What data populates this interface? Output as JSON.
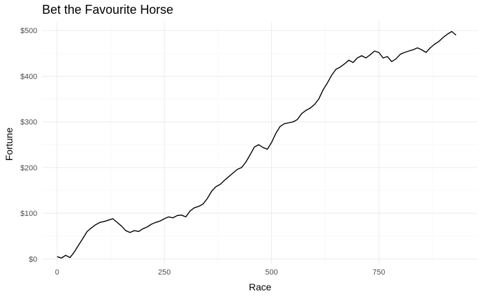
{
  "chart_data": {
    "type": "line",
    "title": "Bet the Favourite Horse",
    "xlabel": "Race",
    "ylabel": "Fortune",
    "xlim": [
      -35,
      980
    ],
    "ylim": [
      -10,
      520
    ],
    "x_ticks": [
      0,
      250,
      500,
      750
    ],
    "x_tick_labels": [
      "0",
      "250",
      "500",
      "750"
    ],
    "y_ticks": [
      0,
      100,
      200,
      300,
      400,
      500
    ],
    "y_tick_labels": [
      "$0",
      "$100",
      "$200",
      "$300",
      "$400",
      "$500"
    ],
    "grid": true,
    "legend": "none",
    "line_color": "#000000",
    "series": [
      {
        "x": [
          0,
          10,
          20,
          30,
          40,
          50,
          60,
          70,
          80,
          90,
          100,
          110,
          120,
          130,
          140,
          150,
          160,
          170,
          180,
          190,
          200,
          210,
          220,
          230,
          240,
          250,
          260,
          270,
          280,
          290,
          300,
          310,
          320,
          330,
          340,
          350,
          360,
          370,
          380,
          390,
          400,
          410,
          420,
          430,
          440,
          450,
          460,
          470,
          480,
          490,
          500,
          510,
          520,
          530,
          540,
          550,
          560,
          570,
          580,
          590,
          600,
          610,
          620,
          630,
          640,
          650,
          660,
          670,
          680,
          690,
          700,
          710,
          720,
          730,
          740,
          750,
          760,
          770,
          780,
          790,
          800,
          810,
          820,
          830,
          840,
          850,
          860,
          870,
          880,
          890,
          900,
          910,
          920,
          930
        ],
        "values": [
          5,
          2,
          8,
          3,
          15,
          30,
          45,
          60,
          68,
          75,
          80,
          82,
          85,
          88,
          80,
          72,
          62,
          58,
          62,
          60,
          66,
          70,
          76,
          80,
          83,
          88,
          92,
          90,
          95,
          96,
          92,
          105,
          112,
          115,
          120,
          132,
          148,
          158,
          163,
          172,
          180,
          188,
          196,
          200,
          212,
          228,
          245,
          250,
          244,
          240,
          255,
          275,
          290,
          296,
          298,
          300,
          305,
          318,
          325,
          330,
          338,
          350,
          370,
          385,
          402,
          415,
          420,
          427,
          435,
          430,
          440,
          445,
          440,
          447,
          455,
          452,
          440,
          443,
          432,
          438,
          448,
          452,
          455,
          458,
          462,
          458,
          452,
          462,
          470,
          476,
          485,
          492,
          498,
          490
        ]
      }
    ]
  }
}
